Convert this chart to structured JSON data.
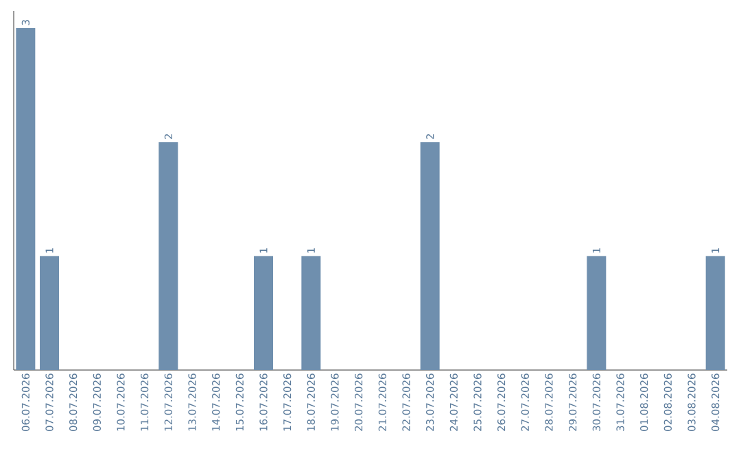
{
  "chart_data": {
    "type": "bar",
    "categories": [
      "06.07.2026",
      "07.07.2026",
      "08.07.2026",
      "09.07.2026",
      "10.07.2026",
      "11.07.2026",
      "12.07.2026",
      "13.07.2026",
      "14.07.2026",
      "15.07.2026",
      "16.07.2026",
      "17.07.2026",
      "18.07.2026",
      "19.07.2026",
      "20.07.2026",
      "21.07.2026",
      "22.07.2026",
      "23.07.2026",
      "24.07.2026",
      "25.07.2026",
      "26.07.2026",
      "27.07.2026",
      "28.07.2026",
      "29.07.2026",
      "30.07.2026",
      "31.07.2026",
      "01.08.2026",
      "02.08.2026",
      "03.08.2026",
      "04.08.2026"
    ],
    "values": [
      3,
      1,
      0,
      0,
      0,
      0,
      2,
      0,
      0,
      0,
      1,
      0,
      1,
      0,
      0,
      0,
      0,
      2,
      0,
      0,
      0,
      0,
      0,
      0,
      1,
      0,
      0,
      0,
      0,
      1
    ],
    "value_labels": [
      "3",
      "1",
      null,
      null,
      null,
      null,
      "2",
      null,
      null,
      null,
      "1",
      null,
      "1",
      null,
      null,
      null,
      null,
      "2",
      null,
      null,
      null,
      null,
      null,
      null,
      "1",
      null,
      null,
      null,
      null,
      "1"
    ],
    "color": "#6f8fae",
    "ylim": [
      0,
      3.15
    ],
    "tick_labels": "x"
  }
}
